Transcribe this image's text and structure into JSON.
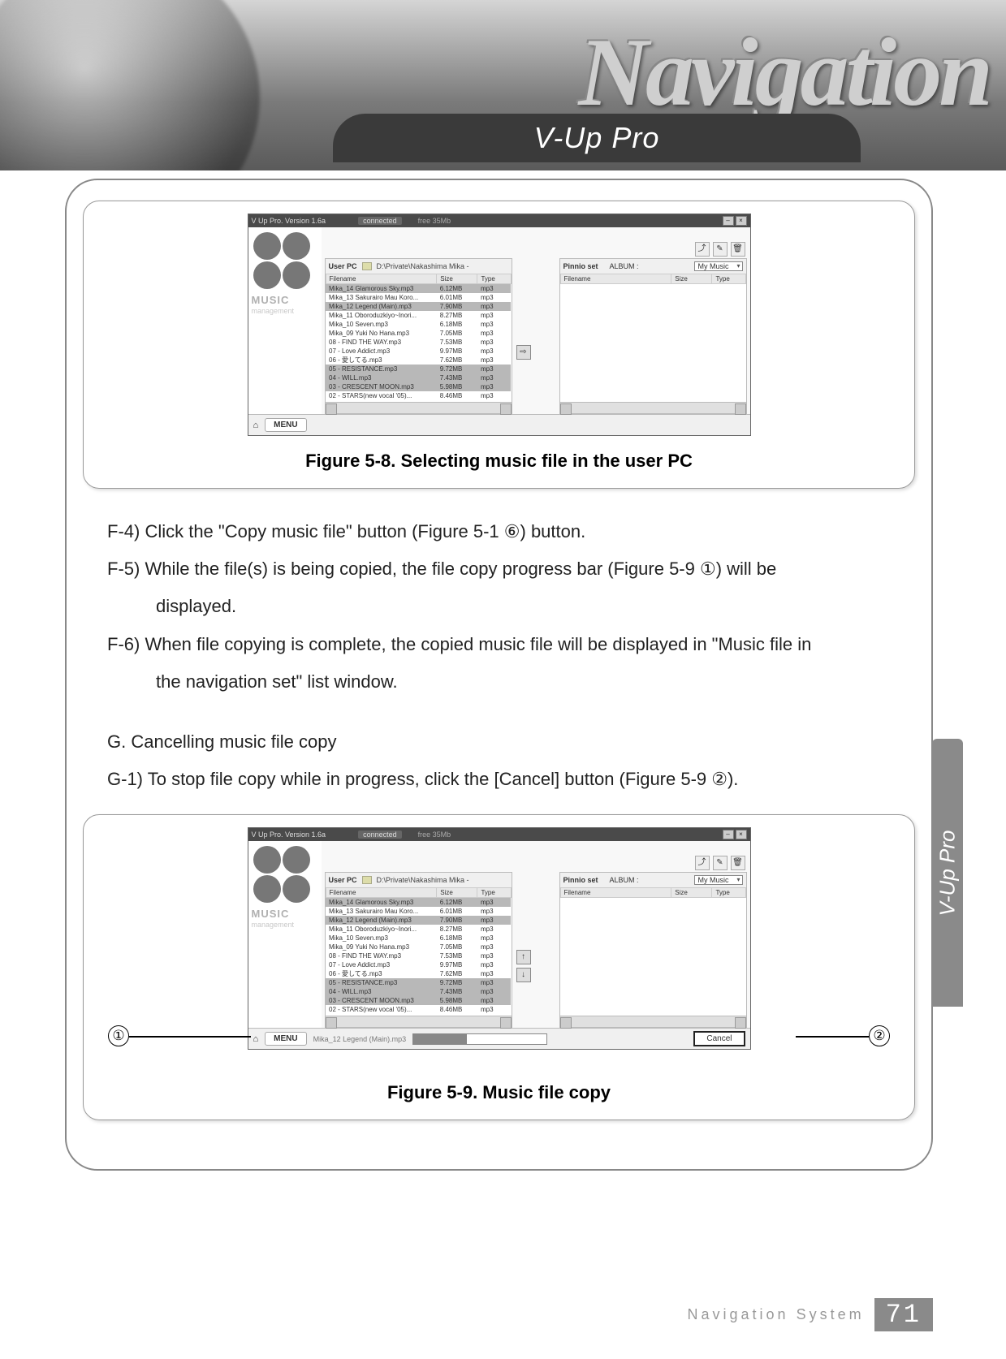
{
  "banner": {
    "title": "Navigation",
    "subtitle": "V-Up Pro"
  },
  "fig1": {
    "caption": "Figure 5-8. Selecting music file in the user PC",
    "app_title": "V Up Pro. Version 1.6a",
    "status": "connected",
    "free_label": "free 35Mb",
    "left": {
      "label": "User PC",
      "path": "D:\\Private\\Nakashima Mika -",
      "col_filename": "Filename",
      "col_size": "Size",
      "col_type": "Type",
      "rows": [
        {
          "n": "Mika_14 Glamorous Sky.mp3",
          "s": "6.12MB",
          "t": "mp3",
          "sel": true
        },
        {
          "n": "Mika_13 Sakurairo Mau Koro...",
          "s": "6.01MB",
          "t": "mp3",
          "sel": false
        },
        {
          "n": "Mika_12 Legend (Main).mp3",
          "s": "7.90MB",
          "t": "mp3",
          "sel": true
        },
        {
          "n": "Mika_11 Oboroduzkiyo~Inori...",
          "s": "8.27MB",
          "t": "mp3",
          "sel": false
        },
        {
          "n": "Mika_10 Seven.mp3",
          "s": "6.18MB",
          "t": "mp3",
          "sel": false
        },
        {
          "n": "Mika_09 Yuki No Hana.mp3",
          "s": "7.05MB",
          "t": "mp3",
          "sel": false
        },
        {
          "n": "08 - FIND THE WAY.mp3",
          "s": "7.53MB",
          "t": "mp3",
          "sel": false
        },
        {
          "n": "07 - Love Addict.mp3",
          "s": "9.97MB",
          "t": "mp3",
          "sel": false
        },
        {
          "n": "06 - 愛してる.mp3",
          "s": "7.62MB",
          "t": "mp3",
          "sel": false
        },
        {
          "n": "05 - RESISTANCE.mp3",
          "s": "9.72MB",
          "t": "mp3",
          "sel": true
        },
        {
          "n": "04 - WILL.mp3",
          "s": "7.43MB",
          "t": "mp3",
          "sel": true
        },
        {
          "n": "03 - CRESCENT MOON.mp3",
          "s": "5.98MB",
          "t": "mp3",
          "sel": true
        },
        {
          "n": "02 - STARS(new vocal '05)...",
          "s": "8.46MB",
          "t": "mp3",
          "sel": false
        }
      ]
    },
    "right": {
      "label": "Pinnio set",
      "album_label": "ALBUM :",
      "album_value": "My Music",
      "col_filename": "Filename",
      "col_size": "Size",
      "col_type": "Type"
    },
    "sidebar": {
      "music": "MUSIC",
      "manage": "management"
    },
    "menu": "MENU",
    "mid_icon": "⇨"
  },
  "body": {
    "f4": "F-4) Click the \"Copy music file\" button (Figure 5-1 ⑥) button.",
    "f5a": "F-5) While the file(s) is being copied, the file copy progress bar (Figure 5-9 ①) will be",
    "f5b": "displayed.",
    "f6a": "F-6) When file copying is complete, the copied music file will be displayed in \"Music file in",
    "f6b": "the navigation set\" list window.",
    "g": "G. Cancelling music file copy",
    "g1": "G-1) To stop file copy while in progress, click the [Cancel] button (Figure 5-9 ②)."
  },
  "fig2": {
    "caption": "Figure 5-9. Music file copy",
    "progress_file": "Mika_12 Legend (Main).mp3",
    "cancel": "Cancel",
    "mid_icons": [
      "↑",
      "↓"
    ],
    "callout1": "①",
    "callout2": "②"
  },
  "side_tab": "V-Up Pro",
  "footer": {
    "label": "Navigation System",
    "num": "71"
  },
  "colors": {
    "pill_bg": "#3a3a3a",
    "side_bg": "#8a8a8a",
    "caption": "#000000"
  }
}
